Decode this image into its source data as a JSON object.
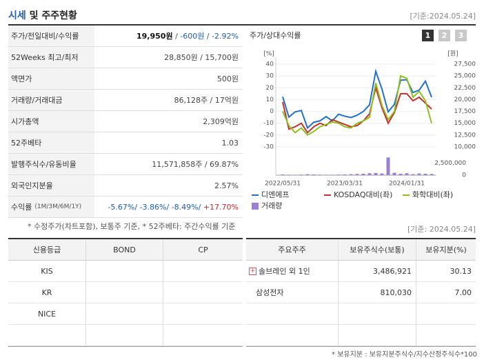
{
  "header": {
    "title": [
      {
        "text": "시세",
        "color": "#1f5bb8"
      },
      {
        "text": " 및 주주현황",
        "color": "#222222"
      }
    ],
    "date": "[기준:2024.05.24]"
  },
  "quote_table": {
    "rows": [
      {
        "label": "주가/전일대비/수익률",
        "value": [
          {
            "text": "19,950원",
            "color": "#111111",
            "bold": true
          },
          {
            "text": " / ",
            "color": "#555555"
          },
          {
            "text": "-600원",
            "color": "#1f5bb8"
          },
          {
            "text": " / ",
            "color": "#555555"
          },
          {
            "text": "-2.92%",
            "color": "#1f5bb8"
          }
        ]
      },
      {
        "label": "52Weeks 최고/최저",
        "value": [
          {
            "text": "28,850원 / 15,700원",
            "color": "#444444"
          }
        ]
      },
      {
        "label": "액면가",
        "value": [
          {
            "text": "500원",
            "color": "#444444"
          }
        ]
      },
      {
        "label": "거래량/거래대금",
        "value": [
          {
            "text": "86,128주 / 17억원",
            "color": "#444444"
          }
        ]
      },
      {
        "label": "시가총액",
        "value": [
          {
            "text": "2,309억원",
            "color": "#444444"
          }
        ]
      },
      {
        "label": "52주베타",
        "value": [
          {
            "text": "1.03",
            "color": "#444444"
          }
        ]
      },
      {
        "label": "발행주식수/유동비율",
        "value": [
          {
            "text": "11,571,858주 / 69.87%",
            "color": "#444444"
          }
        ]
      },
      {
        "label": "외국인지분율",
        "value": [
          {
            "text": "2.57%",
            "color": "#444444"
          }
        ]
      },
      {
        "label": "수익률",
        "sublabel": "(1M/3M/6M/1Y)",
        "value": [
          {
            "text": "-5.67%/ ",
            "color": "#1f5bb8"
          },
          {
            "text": "-3.86%/ ",
            "color": "#1f5bb8"
          },
          {
            "text": "-8.49%/ ",
            "color": "#1f5bb8"
          },
          {
            "text": "+17.70%",
            "color": "#d0262c"
          }
        ]
      }
    ]
  },
  "note": "* 수정주가(차트포함), 보통주 기준, * 52주베타: 주간수익률 기준",
  "chart_panel": {
    "title": "주가/상대수익률",
    "tabs": [
      "1",
      "2",
      "3"
    ],
    "chart_data": {
      "type": "line",
      "categories": [
        "2022/05/31",
        null,
        null,
        null,
        null,
        null,
        null,
        null,
        null,
        null,
        "2023/03/31",
        null,
        null,
        null,
        null,
        null,
        null,
        null,
        null,
        null,
        "2024/01/31",
        null,
        null,
        null,
        null
      ],
      "ylabel": "[%]",
      "y2label": "[원]",
      "ylim": [
        -30,
        40
      ],
      "yticks": [
        40,
        30,
        20,
        10,
        0,
        -10,
        -20,
        -30
      ],
      "y2lim": [
        10000,
        27500
      ],
      "y2ticks": [
        {
          "value": 27500,
          "label": "27,500"
        },
        {
          "value": 25000,
          "label": "25,000"
        },
        {
          "value": 22500,
          "label": "22,500"
        },
        {
          "value": 20000,
          "label": "20,000"
        },
        {
          "value": 17500,
          "label": "17,500"
        },
        {
          "value": 15000,
          "label": "15,000"
        },
        {
          "value": 12500,
          "label": "12,500"
        },
        {
          "value": 10000,
          "label": "10,000"
        }
      ],
      "y3lim": [
        0,
        3750000
      ],
      "y3ticks": [
        {
          "value": 2500000,
          "label": "2,500,000"
        },
        0
      ],
      "grid": true,
      "series": [
        {
          "name": "디엔에프",
          "color": "#1f6fd1",
          "axis": "y2",
          "values": [
            20600,
            16300,
            17400,
            17700,
            14000,
            15200,
            15500,
            16400,
            15500,
            16900,
            16500,
            16200,
            16700,
            17500,
            18900,
            26000,
            22200,
            17400,
            19000,
            24100,
            24200,
            21500,
            22000,
            23900,
            20500
          ]
        },
        {
          "name": "KOSDAQ대비(좌)",
          "color": "#c4302b",
          "values": [
            8,
            -15,
            -13,
            -10,
            -18,
            -13,
            -10,
            -12,
            -7,
            -9,
            -11,
            -13,
            -12,
            -8,
            -2,
            20,
            3,
            -10,
            -1,
            15,
            15,
            9,
            12,
            7,
            2
          ]
        },
        {
          "name": "화학대비(좌)",
          "color": "#8fbf1f",
          "values": [
            0,
            -12,
            -18,
            -14,
            -20,
            -17,
            -13,
            -11,
            -9,
            -10,
            -13,
            -14,
            -10,
            -8,
            -5,
            24,
            5,
            -7,
            0,
            30,
            28,
            12,
            17,
            9,
            -10
          ]
        },
        {
          "name": "거래량",
          "color": "#9b7fd4",
          "type": "bar",
          "axis": "y3",
          "values": [
            150000,
            100000,
            80000,
            120000,
            200000,
            150000,
            100000,
            90000,
            80000,
            120000,
            150000,
            200000,
            250000,
            300000,
            400000,
            450000,
            350000,
            3700000,
            500000,
            300000,
            400000,
            200000,
            350000,
            300000,
            250000
          ]
        }
      ]
    }
  },
  "date2": "[기준: 2024.05.24]",
  "credit_table": {
    "header": [
      "신용등급",
      "BOND",
      "CP"
    ],
    "rows": [
      [
        "KIS"
      ],
      [
        "KR"
      ],
      [
        "NICE"
      ]
    ]
  },
  "holders_table": {
    "header": [
      "주요주주",
      "보유주식수(보통)",
      "보유지분(%)"
    ],
    "rows": [
      [
        "솔브레인 외 1인",
        "3,486,921",
        "30.13"
      ],
      [
        "삼성전자",
        "810,030",
        "7.00"
      ]
    ]
  },
  "holders_note": "* 보유지분 : 보유지분주식수/지수산정주식수*100"
}
